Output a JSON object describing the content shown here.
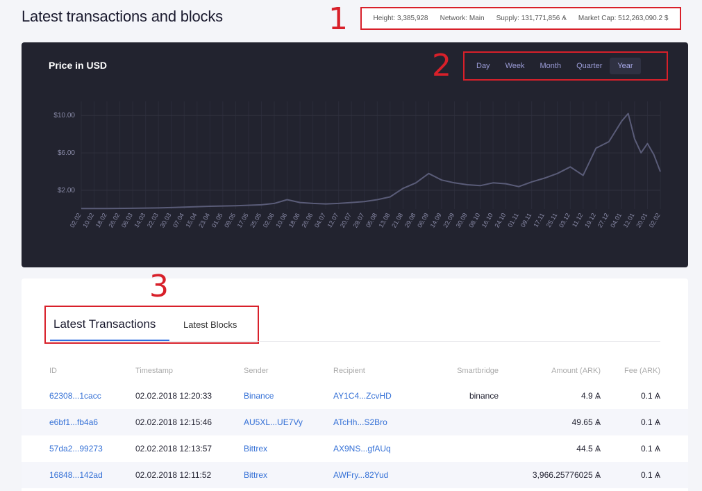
{
  "page": {
    "title": "Latest transactions and blocks"
  },
  "stats": {
    "height": "Height: 3,385,928",
    "network": "Network: Main",
    "supply": "Supply: 131,771,856 Ѧ",
    "market_cap": "Market Cap: 512,263,090.2 $"
  },
  "callouts": {
    "one": "1",
    "two": "2",
    "three": "3"
  },
  "chart": {
    "title": "Price in USD",
    "periods": [
      {
        "label": "Day",
        "active": false
      },
      {
        "label": "Week",
        "active": false
      },
      {
        "label": "Month",
        "active": false
      },
      {
        "label": "Quarter",
        "active": false
      },
      {
        "label": "Year",
        "active": true
      }
    ]
  },
  "chart_data": {
    "type": "line",
    "title": "Price in USD",
    "yticks": [
      "$2.00",
      "$6.00",
      "$10.00"
    ],
    "ylim": [
      0,
      11.5
    ],
    "grid": true,
    "line_color": "#5a5c78",
    "x_tick_labels": [
      "02.02",
      "10.02",
      "18.02",
      "26.02",
      "06.03",
      "14.03",
      "22.03",
      "30.03",
      "07.04",
      "15.04",
      "23.04",
      "01.05",
      "09.05",
      "17.05",
      "25.05",
      "02.06",
      "10.06",
      "18.06",
      "26.06",
      "04.07",
      "12.07",
      "20.07",
      "28.07",
      "05.08",
      "13.08",
      "21.08",
      "29.08",
      "06.09",
      "14.09",
      "22.09",
      "30.09",
      "08.10",
      "16.10",
      "24.10",
      "01.11",
      "09.11",
      "17.11",
      "25.11",
      "03.12",
      "11.12",
      "19.12",
      "27.12",
      "04.01",
      "12.01",
      "20.01",
      "02.02"
    ],
    "series": [
      {
        "x_index": [
          0,
          2,
          4,
          6,
          8,
          10,
          12,
          14,
          15,
          16,
          17,
          18,
          19,
          20,
          21,
          22,
          23,
          24,
          25,
          26,
          27,
          28,
          29,
          30,
          31,
          32,
          33,
          34,
          35,
          36,
          37,
          38,
          39,
          40,
          41,
          42,
          42.5,
          43,
          43.5,
          44,
          44.5,
          45
        ],
        "values": [
          0.05,
          0.06,
          0.08,
          0.12,
          0.2,
          0.3,
          0.35,
          0.45,
          0.6,
          1.0,
          0.7,
          0.6,
          0.55,
          0.6,
          0.7,
          0.8,
          1.0,
          1.3,
          2.2,
          2.8,
          3.8,
          3.1,
          2.8,
          2.6,
          2.5,
          2.8,
          2.7,
          2.4,
          2.9,
          3.3,
          3.8,
          4.5,
          3.6,
          6.5,
          7.2,
          9.4,
          10.2,
          7.5,
          6.0,
          7.0,
          5.8,
          4.0
        ]
      }
    ]
  },
  "tabs": {
    "active": "Latest Transactions",
    "inactive": "Latest Blocks"
  },
  "table": {
    "headers": {
      "id": "ID",
      "timestamp": "Timestamp",
      "sender": "Sender",
      "recipient": "Recipient",
      "smartbridge": "Smartbridge",
      "amount": "Amount (ARK)",
      "fee": "Fee (ARK)"
    },
    "rows": [
      {
        "id": "62308...1cacc",
        "timestamp": "02.02.2018 12:20:33",
        "sender": "Binance",
        "recipient": "AY1C4...ZcvHD",
        "smartbridge": "binance",
        "amount": "4.9 Ѧ",
        "fee": "0.1 Ѧ"
      },
      {
        "id": "e6bf1...fb4a6",
        "timestamp": "02.02.2018 12:15:46",
        "sender": "AU5XL...UE7Vy",
        "recipient": "ATcHh...S2Bro",
        "smartbridge": "",
        "amount": "49.65 Ѧ",
        "fee": "0.1 Ѧ"
      },
      {
        "id": "57da2...99273",
        "timestamp": "02.02.2018 12:13:57",
        "sender": "Bittrex",
        "recipient": "AX9NS...gfAUq",
        "smartbridge": "",
        "amount": "44.5 Ѧ",
        "fee": "0.1 Ѧ"
      },
      {
        "id": "16848...142ad",
        "timestamp": "02.02.2018 12:11:52",
        "sender": "Bittrex",
        "recipient": "AWFry...82Yud",
        "smartbridge": "",
        "amount": "3,966.25776025 Ѧ",
        "fee": "0.1 Ѧ"
      }
    ]
  }
}
